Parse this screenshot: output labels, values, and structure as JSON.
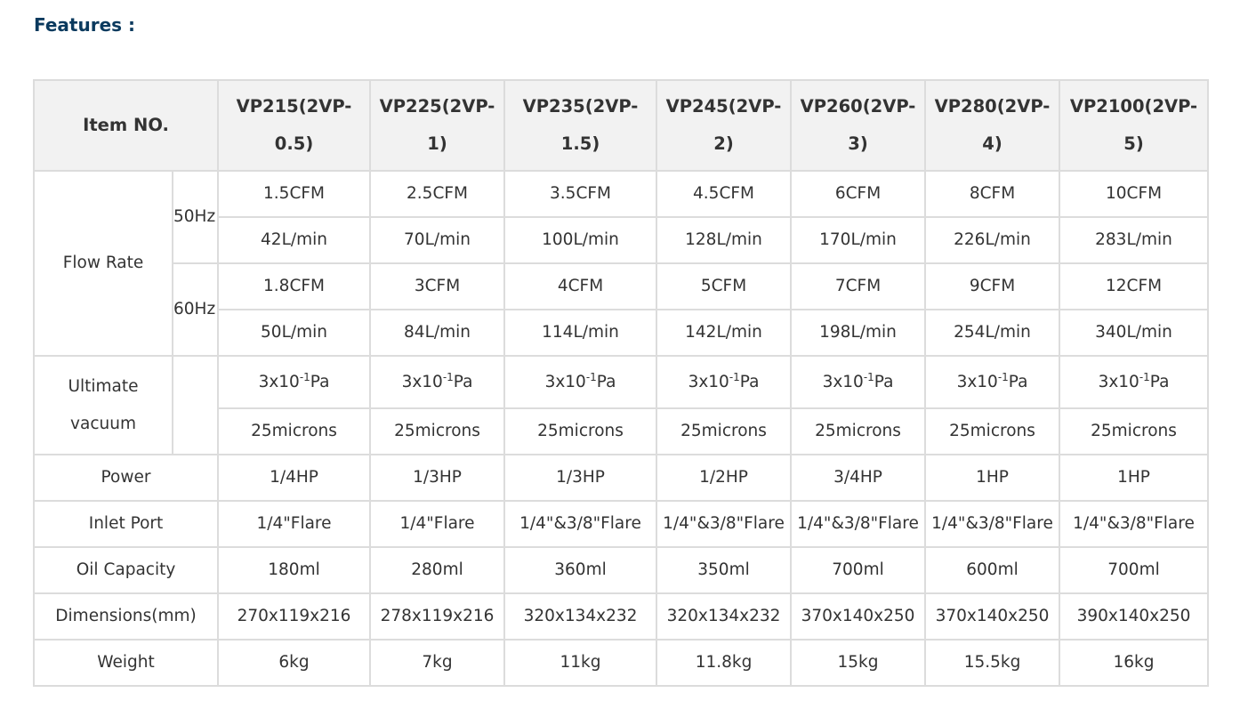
{
  "title": "Features :",
  "table": {
    "header_label": "Item NO.",
    "models": [
      "VP215(2VP-0.5)",
      "VP225(2VP-1)",
      "VP235(2VP-1.5)",
      "VP245(2VP-2)",
      "VP260(2VP-3)",
      "VP280(2VP-4)",
      "VP2100(2VP-5)"
    ],
    "flow_rate": {
      "label": "Flow Rate",
      "groups": [
        {
          "hz": "50Hz",
          "cfm": [
            "1.5CFM",
            "2.5CFM",
            "3.5CFM",
            "4.5CFM",
            "6CFM",
            "8CFM",
            "10CFM"
          ],
          "lpm": [
            "42L/min",
            "70L/min",
            "100L/min",
            "128L/min",
            "170L/min",
            "226L/min",
            "283L/min"
          ]
        },
        {
          "hz": "60Hz",
          "cfm": [
            "1.8CFM",
            "3CFM",
            "4CFM",
            "5CFM",
            "7CFM",
            "9CFM",
            "12CFM"
          ],
          "lpm": [
            "50L/min",
            "84L/min",
            "114L/min",
            "142L/min",
            "198L/min",
            "254L/min",
            "340L/min"
          ]
        }
      ]
    },
    "ultimate_vacuum": {
      "label": "Ultimate vacuum",
      "pa": {
        "base": "3x10",
        "exp": "-1",
        "unit": "Pa"
      },
      "pa_count": 7,
      "microns": [
        "25microns",
        "25microns",
        "25microns",
        "25microns",
        "25microns",
        "25microns",
        "25microns"
      ]
    },
    "rows": [
      {
        "label": "Power",
        "values": [
          "1/4HP",
          "1/3HP",
          "1/3HP",
          "1/2HP",
          "3/4HP",
          "1HP",
          "1HP"
        ]
      },
      {
        "label": "Inlet Port",
        "values": [
          "1/4\"Flare",
          "1/4\"Flare",
          "1/4\"&3/8\"Flare",
          "1/4\"&3/8\"Flare",
          "1/4\"&3/8\"Flare",
          "1/4\"&3/8\"Flare",
          "1/4\"&3/8\"Flare"
        ]
      },
      {
        "label": "Oil Capacity",
        "values": [
          "180ml",
          "280ml",
          "360ml",
          "350ml",
          "700ml",
          "600ml",
          "700ml"
        ]
      },
      {
        "label": "Dimensions(mm)",
        "values": [
          "270x119x216",
          "278x119x216",
          "320x134x232",
          "320x134x232",
          "370x140x250",
          "370x140x250",
          "390x140x250"
        ]
      },
      {
        "label": "Weight",
        "values": [
          "6kg",
          "7kg",
          "11kg",
          "11.8kg",
          "15kg",
          "15.5kg",
          "16kg"
        ]
      }
    ]
  }
}
